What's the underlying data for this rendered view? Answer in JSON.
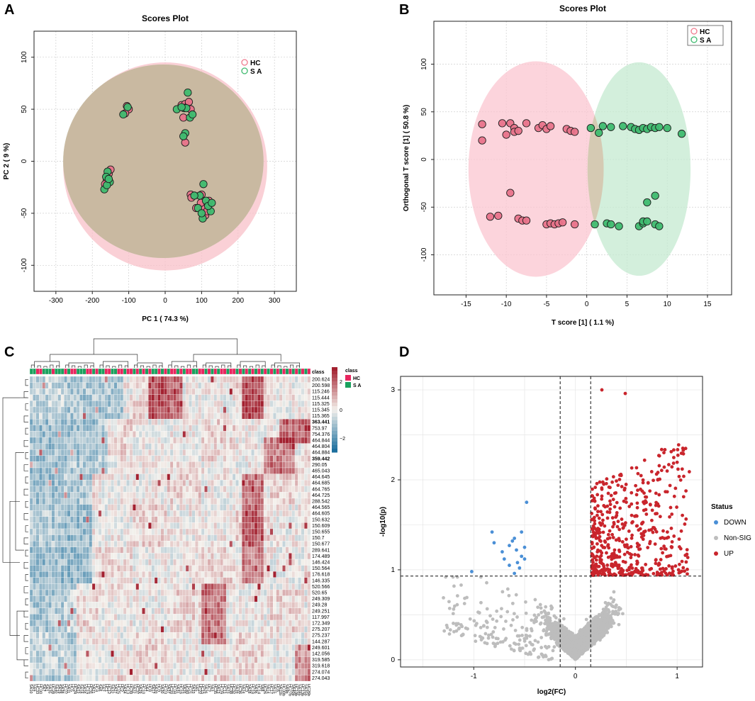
{
  "chart_data": [
    {
      "panel": "A",
      "type": "scatter",
      "title": "Scores Plot",
      "xlabel": "PC 1 ( 74.3 %)",
      "ylabel": "PC 2 ( 9 %)",
      "xlim": [
        -360,
        360
      ],
      "ylim": [
        -125,
        125
      ],
      "xticks": [
        -300,
        -200,
        -100,
        0,
        100,
        200,
        300
      ],
      "yticks": [
        -100,
        -50,
        0,
        50,
        100
      ],
      "legend": [
        {
          "name": "HC",
          "color": "#f07c8f"
        },
        {
          "name": "S A",
          "color": "#3fba6f"
        }
      ],
      "ellipses": [
        {
          "group": "HC",
          "cx": 0,
          "cy": -5,
          "rx": 280,
          "ry": 100,
          "color": "#f8c0c8"
        },
        {
          "group": "S A",
          "cx": -5,
          "cy": 0,
          "rx": 275,
          "ry": 93,
          "color": "#bfe3c8"
        }
      ],
      "series": [
        {
          "name": "HC",
          "color": "#e8738a",
          "points": [
            [
              -105,
              53
            ],
            [
              -100,
              50
            ],
            [
              -110,
              46
            ],
            [
              45,
              54
            ],
            [
              55,
              55
            ],
            [
              60,
              52
            ],
            [
              65,
              57
            ],
            [
              70,
              50
            ],
            [
              50,
              42
            ],
            [
              55,
              18
            ],
            [
              -160,
              -18
            ],
            [
              -155,
              -12
            ],
            [
              -165,
              -22
            ],
            [
              -150,
              -8
            ],
            [
              100,
              -32
            ],
            [
              105,
              -45
            ],
            [
              110,
              -52
            ],
            [
              98,
              -40
            ],
            [
              120,
              -38
            ],
            [
              115,
              -48
            ],
            [
              70,
              -32
            ],
            [
              72,
              -35
            ],
            [
              85,
              -45
            ]
          ]
        },
        {
          "name": "S A",
          "color": "#3fba6f",
          "points": [
            [
              -115,
              45
            ],
            [
              -103,
              52
            ],
            [
              32,
              50
            ],
            [
              52,
              51
            ],
            [
              62,
              66
            ],
            [
              58,
              51
            ],
            [
              68,
              42
            ],
            [
              55,
              27
            ],
            [
              50,
              24
            ],
            [
              45,
              52
            ],
            [
              75,
              45
            ],
            [
              -158,
              -10
            ],
            [
              -162,
              -15
            ],
            [
              -167,
              -27
            ],
            [
              -152,
              -20
            ],
            [
              -160,
              -23
            ],
            [
              -155,
              -17
            ],
            [
              105,
              -22
            ],
            [
              95,
              -33
            ],
            [
              112,
              -38
            ],
            [
              125,
              -48
            ],
            [
              103,
              -55
            ],
            [
              80,
              -33
            ],
            [
              118,
              -43
            ],
            [
              90,
              -45
            ],
            [
              128,
              -40
            ],
            [
              100,
              -50
            ]
          ]
        }
      ]
    },
    {
      "panel": "B",
      "type": "scatter",
      "title": "Scores Plot",
      "xlabel": "T score [1] ( 1.1 %)",
      "ylabel": "Orthogonal T score [1] ( 50.8 %)",
      "xlim": [
        -19,
        18
      ],
      "ylim": [
        -142,
        145
      ],
      "xticks": [
        -15,
        -10,
        -5,
        0,
        5,
        10,
        15
      ],
      "yticks": [
        -100,
        -50,
        0,
        50,
        100
      ],
      "legend": [
        {
          "name": "HC",
          "color": "#f07c8f"
        },
        {
          "name": "S A",
          "color": "#3fba6f"
        }
      ],
      "ellipses": [
        {
          "group": "HC",
          "cx": -6.3,
          "cy": -10,
          "rx": 8.4,
          "ry": 113,
          "color": "#fbc6d0"
        },
        {
          "group": "S A",
          "cx": 6.5,
          "cy": -10,
          "rx": 6.4,
          "ry": 112,
          "color": "#c4ead0"
        }
      ],
      "series": [
        {
          "name": "HC",
          "color": "#e8738a",
          "points": [
            [
              -13,
              37
            ],
            [
              -13,
              20
            ],
            [
              -10.5,
              38
            ],
            [
              -10,
              26
            ],
            [
              -9.5,
              38
            ],
            [
              -9,
              33
            ],
            [
              -9,
              29
            ],
            [
              -8.5,
              30
            ],
            [
              -7.5,
              38
            ],
            [
              -6,
              33
            ],
            [
              -5.5,
              36
            ],
            [
              -5,
              32
            ],
            [
              -4.5,
              35
            ],
            [
              -2.5,
              32
            ],
            [
              -2,
              30
            ],
            [
              -1.5,
              29
            ],
            [
              -12,
              -60
            ],
            [
              -11,
              -59
            ],
            [
              -9.5,
              -35
            ],
            [
              -8.5,
              -62
            ],
            [
              -8,
              -64
            ],
            [
              -7.5,
              -64
            ],
            [
              -5,
              -68
            ],
            [
              -4.5,
              -67
            ],
            [
              -4,
              -68
            ],
            [
              -3.5,
              -67
            ],
            [
              -3,
              -66
            ],
            [
              -1.5,
              -68
            ]
          ]
        },
        {
          "name": "S A",
          "color": "#3fba6f",
          "points": [
            [
              0.5,
              33
            ],
            [
              1.5,
              28
            ],
            [
              2,
              35
            ],
            [
              3,
              34
            ],
            [
              4.5,
              35
            ],
            [
              5.5,
              34
            ],
            [
              6,
              32
            ],
            [
              6.5,
              31
            ],
            [
              7,
              33
            ],
            [
              7.5,
              32
            ],
            [
              8,
              34
            ],
            [
              8.5,
              33
            ],
            [
              9,
              34
            ],
            [
              10,
              33
            ],
            [
              11.8,
              27
            ],
            [
              1,
              -68
            ],
            [
              2.5,
              -67
            ],
            [
              3,
              -68
            ],
            [
              4,
              -70
            ],
            [
              6.5,
              -70
            ],
            [
              7,
              -67
            ],
            [
              7,
              -65
            ],
            [
              7.5,
              -45
            ],
            [
              7.5,
              -65
            ],
            [
              8.5,
              -38
            ],
            [
              8.5,
              -68
            ],
            [
              9,
              -70
            ]
          ]
        }
      ]
    },
    {
      "panel": "C",
      "type": "heatmap",
      "legend_title": "class",
      "column_annotation_label": "class",
      "legend": [
        {
          "name": "HC",
          "color": "#e8265f"
        },
        {
          "name": "S A",
          "color": "#1aa15e"
        }
      ],
      "colorbar": {
        "ticks": [
          2,
          0,
          -2
        ],
        "tick_labels": [
          "2",
          "0",
          "−2"
        ],
        "range": [
          -3,
          3
        ],
        "high": "#a32130",
        "mid": "#f4f1ec",
        "low": "#1c6f9e"
      },
      "rows": [
        "200.624",
        "200.598",
        "115.246",
        "115.444",
        "115.325",
        "115.345",
        "115.365",
        "363.441",
        "753.97",
        "754.376",
        "464.844",
        "464.804",
        "464.884",
        "359.442",
        "290.05",
        "465.043",
        "464.645",
        "464.685",
        "464.765",
        "464.725",
        "288.542",
        "464.565",
        "464.605",
        "150.632",
        "150.609",
        "150.655",
        "150.7",
        "150.677",
        "289.641",
        "174.489",
        "146.424",
        "150.564",
        "176.618",
        "146.335",
        "520.566",
        "520.65",
        "249.309",
        "249.28",
        "249.251",
        "117.997",
        "172.349",
        "275.207",
        "275.237",
        "144.287",
        "249.601",
        "142.056",
        "319.585",
        "319.618",
        "274.074",
        "274.043"
      ],
      "highlighted_rows": [
        "363.441",
        "359.442"
      ],
      "highlight_color": "#e41a1c",
      "columns": [
        "SA10",
        "SA9",
        "HC33",
        "HC30",
        "SA7",
        "SA1",
        "SA35",
        "HC28",
        "SA40",
        "SA19",
        "SA38",
        "HC27",
        "SA11",
        "HC5",
        "HC24",
        "SA12",
        "SA18",
        "SA16",
        "HC19",
        "HC31",
        "SA21",
        "HC4",
        "SA6",
        "SA2",
        "HC1",
        "HC12",
        "SA32",
        "SA27",
        "HC25",
        "HC2",
        "SA34",
        "HC13",
        "HC39",
        "SA22",
        "HC37",
        "SA29",
        "HC10",
        "SA4",
        "HC8",
        "SA17",
        "SA20",
        "HC9",
        "SA30",
        "HC23",
        "SA37",
        "HC20",
        "HC34",
        "SA31",
        "HC16",
        "SA25",
        "HC40",
        "HC21",
        "SA33",
        "SA5",
        "HC22",
        "HC15",
        "SA26",
        "HC7",
        "SA3",
        "HC35",
        "SA13",
        "HC29",
        "HC11",
        "SA23",
        "HC38",
        "HC32",
        "SA39",
        "HC36",
        "SA24",
        "HC3",
        "SA28",
        "HC18",
        "SA36",
        "HC14",
        "SA8",
        "HC26",
        "SA14",
        "HC17",
        "SA15",
        "HC6",
        "SA11b",
        "HC30b",
        "SA9b",
        "HC27b",
        "SA40b",
        "HC19b",
        "SA38b",
        "HC13b",
        "SA35b",
        "HC26b"
      ]
    },
    {
      "panel": "D",
      "type": "scatter",
      "subtype": "volcano",
      "xlabel": "log2(FC)",
      "ylabel": "-log10(p)",
      "xlim": [
        -1.72,
        1.25
      ],
      "ylim": [
        -0.08,
        3.15
      ],
      "xticks": [
        -1,
        0,
        1
      ],
      "yticks": [
        0,
        1,
        2,
        3
      ],
      "fc_thresholds": [
        -0.15,
        0.15
      ],
      "p_threshold": 0.93,
      "legend_title": "Status",
      "series": [
        {
          "name": "DOWN",
          "color": "#4a8fd6",
          "points": [
            [
              -1.02,
              0.98
            ],
            [
              -0.82,
              1.42
            ],
            [
              -0.8,
              1.3
            ],
            [
              -0.72,
              1.2
            ],
            [
              -0.65,
              1.05
            ],
            [
              -0.62,
              1.32
            ],
            [
              -0.6,
              1.35
            ],
            [
              -0.58,
              1.22
            ],
            [
              -0.55,
              1.02
            ],
            [
              -0.53,
              1.15
            ],
            [
              -0.5,
              1.25
            ],
            [
              -0.5,
              1.12
            ],
            [
              -0.48,
              1.75
            ],
            [
              -0.7,
              1.12
            ],
            [
              -0.6,
              0.96
            ],
            [
              -0.53,
              1.42
            ],
            [
              -0.65,
              1.27
            ],
            [
              -0.57,
              1.08
            ]
          ]
        },
        {
          "name": "Non-SIG",
          "color": "#bdbdbd",
          "points": []
        },
        {
          "name": "UP",
          "color": "#c9252c",
          "points": []
        }
      ]
    }
  ]
}
